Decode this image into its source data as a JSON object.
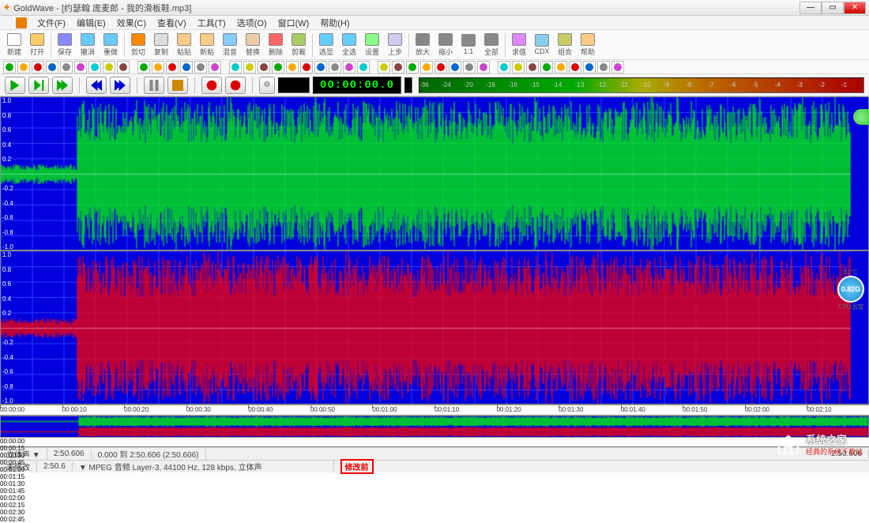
{
  "window": {
    "app": "GoldWave",
    "title": "[约瑟翰 庞麦郎 - 我的滑板鞋.mp3]"
  },
  "menu": [
    "文件(F)",
    "编辑(E)",
    "效果(C)",
    "查看(V)",
    "工具(T)",
    "选项(O)",
    "窗口(W)",
    "帮助(H)"
  ],
  "toolbar1": [
    {
      "label": "新建",
      "color": "#fff",
      "ico": "new"
    },
    {
      "label": "打开",
      "color": "#fc6",
      "ico": "open"
    },
    {
      "label": "保存",
      "color": "#88f",
      "ico": "save"
    },
    {
      "label": "撤消",
      "color": "#6cf",
      "ico": "undo"
    },
    {
      "label": "重做",
      "color": "#6cf",
      "ico": "redo"
    },
    {
      "label": "剪切",
      "color": "#f80",
      "ico": "cut"
    },
    {
      "label": "复制",
      "color": "#ddd",
      "ico": "copy"
    },
    {
      "label": "粘贴",
      "color": "#fc8",
      "ico": "paste"
    },
    {
      "label": "新粘",
      "color": "#fc8",
      "ico": "pnew"
    },
    {
      "label": "混音",
      "color": "#8cf",
      "ico": "mix"
    },
    {
      "label": "替换",
      "color": "#eca",
      "ico": "replace"
    },
    {
      "label": "删除",
      "color": "#f66",
      "ico": "del"
    },
    {
      "label": "剪裁",
      "color": "#ac6",
      "ico": "trim"
    },
    {
      "label": "选显",
      "color": "#6cf",
      "ico": "selv"
    },
    {
      "label": "全选",
      "color": "#6cf",
      "ico": "sela"
    },
    {
      "label": "设置",
      "color": "#8f8",
      "ico": "set"
    },
    {
      "label": "上步",
      "color": "#cce",
      "ico": "prev"
    },
    {
      "label": "放大",
      "color": "#888",
      "ico": "zi"
    },
    {
      "label": "缩小",
      "color": "#888",
      "ico": "zo"
    },
    {
      "label": "1:1",
      "color": "#888",
      "ico": "z1"
    },
    {
      "label": "全部",
      "color": "#888",
      "ico": "za"
    },
    {
      "label": "求值",
      "color": "#d8f",
      "ico": "eval"
    },
    {
      "label": "CDX",
      "color": "#8ce",
      "ico": "cdx"
    },
    {
      "label": "组合",
      "color": "#cc6",
      "ico": "link"
    },
    {
      "label": "帮助",
      "color": "#fc8",
      "ico": "help"
    }
  ],
  "timecode": "00:00:00.0",
  "vu_labels": [
    "-36",
    "-24",
    "-20",
    "-18",
    "-16",
    "-15",
    "-14",
    "-13",
    "-12",
    "-11",
    "-10",
    "-9",
    "-8",
    "-7",
    "-6",
    "-5",
    "-4",
    "-3",
    "-2",
    "-1"
  ],
  "wave": {
    "bg": "#0000dd",
    "grid": "#3040ff",
    "left_color": "#00ff00",
    "right_color": "#ff0000",
    "scale_ticks": [
      "1.0",
      "0.8",
      "0.6",
      "0.4",
      "0.2",
      "",
      "-0.2",
      "-0.4",
      "-0.6",
      "-0.8",
      "-1.0"
    ],
    "quiet_end_pct": 9
  },
  "timeline_marks": [
    "00:00:00",
    "00:00:10",
    "00:00:20",
    "00:00:30",
    "00:00:40",
    "00:00:50",
    "00:01:00",
    "00:01:10",
    "00:01:20",
    "00:01:30",
    "00:01:40",
    "00:01:50",
    "00:02:00",
    "00:02:10"
  ],
  "overview_marks": [
    "00:00:00",
    "00:00:15",
    "00:00:30",
    "00:00:45",
    "00:01:00",
    "00:01:15",
    "00:01:30",
    "00:01:45",
    "00:02:00",
    "00:02:15",
    "00:02:30",
    "00:02:45"
  ],
  "status": {
    "stereo": "立体声 ▼",
    "dur": "2:50.606",
    "range": "0.000 到 2:50.606 (2:50.606)",
    "zoom": "2:50.606",
    "unmod": "未修改",
    "zoom2": "2:50.6",
    "format": "▼  MPEG 音频 Layer-3, 44100 Hz, 128 kbps, 立体声",
    "annotation": "修改前"
  },
  "cpu": {
    "val": "0.82G",
    "temp": "31°C",
    "label": "CPU温度"
  },
  "watermark": {
    "text": "系统之家",
    "sub": "经典的系统下载站"
  }
}
